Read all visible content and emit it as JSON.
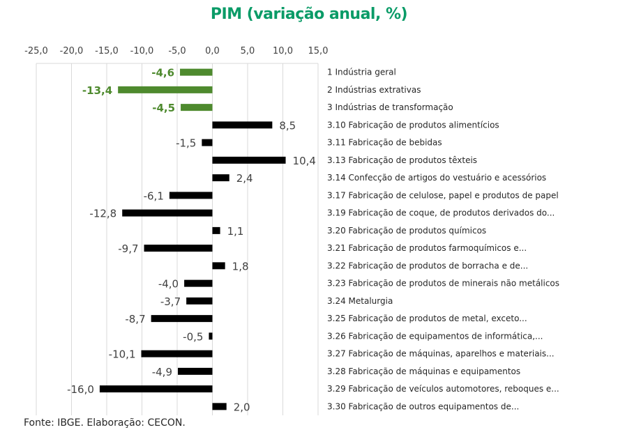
{
  "chart_data": {
    "type": "bar",
    "orientation": "horizontal",
    "title": "PIM (variação anual, %)",
    "xlabel": "",
    "ylabel": "",
    "xlim": [
      -25,
      15
    ],
    "x_ticks": [
      -25,
      -20,
      -15,
      -10,
      -5,
      0,
      5,
      10,
      15
    ],
    "x_tick_labels": [
      "-25,0",
      "-20,0",
      "-15,0",
      "-10,0",
      "-5,0",
      "0,0",
      "5,0",
      "10,0",
      "15,0"
    ],
    "x_axis_position": "top",
    "grid": true,
    "legend": "none",
    "categories": [
      "1 Indústria geral",
      "2 Indústrias extrativas",
      "3 Indústrias de transformação",
      "3.10 Fabricação de produtos alimentícios",
      "3.11 Fabricação de bebidas",
      "3.13 Fabricação de produtos têxteis",
      "3.14 Confecção de artigos do vestuário e acessórios",
      "3.17 Fabricação de celulose, papel e produtos de papel",
      "3.19 Fabricação de coque, de produtos derivados do...",
      "3.20 Fabricação de produtos químicos",
      "3.21 Fabricação de produtos farmoquímicos e...",
      "3.22 Fabricação de produtos de borracha e de...",
      "3.23 Fabricação de produtos de minerais não metálicos",
      "3.24 Metalurgia",
      "3.25 Fabricação de produtos de metal, exceto...",
      "3.26 Fabricação de equipamentos de informática,...",
      "3.27 Fabricação de máquinas, aparelhos e materiais...",
      "3.28 Fabricação de máquinas e equipamentos",
      "3.29 Fabricação de veículos automotores, reboques e...",
      "3.30 Fabricação de outros equipamentos de..."
    ],
    "values": [
      -4.6,
      -13.4,
      -4.5,
      8.5,
      -1.5,
      10.4,
      2.4,
      -6.1,
      -12.8,
      1.1,
      -9.7,
      1.8,
      -4.0,
      -3.7,
      -8.7,
      -0.5,
      -10.1,
      -4.9,
      -16.0,
      2.0
    ],
    "value_labels": [
      "-4,6",
      "-13,4",
      "-4,5",
      "8,5",
      "-1,5",
      "10,4",
      "2,4",
      "-6,1",
      "-12,8",
      "1,1",
      "-9,7",
      "1,8",
      "-4,0",
      "-3,7",
      "-8,7",
      "-0,5",
      "-10,1",
      "-4,9",
      "-16,0",
      "2,0"
    ],
    "highlighted": [
      true,
      true,
      true,
      false,
      false,
      false,
      false,
      false,
      false,
      false,
      false,
      false,
      false,
      false,
      false,
      false,
      false,
      false,
      false,
      false
    ],
    "colors": {
      "title": "#0a9b67",
      "highlight_bar": "#4e8a2e",
      "default_bar": "#000000",
      "grid": "#d9d9d9"
    }
  },
  "source_note": "Fonte: IBGE. Elaboração: CECON."
}
